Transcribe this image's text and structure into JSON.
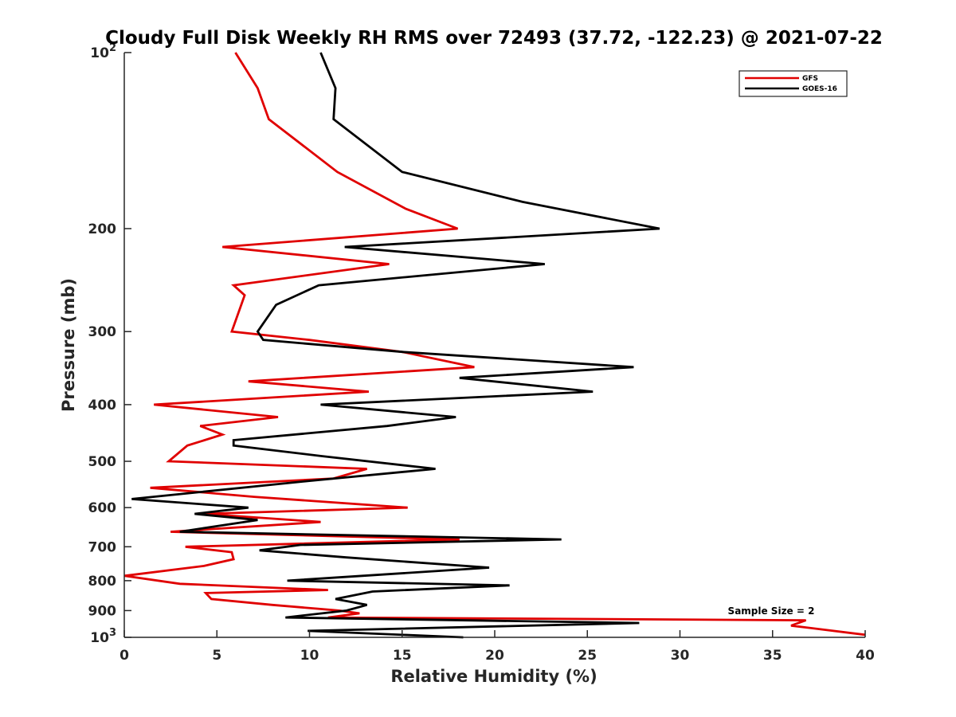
{
  "chart_data": {
    "type": "line",
    "title": "Cloudy Full Disk Weekly RH RMS over 72493 (37.72, -122.23) @ 2021-07-22",
    "xlabel": "Relative Humidity (%)",
    "ylabel": "Pressure (mb)",
    "xlim": [
      0,
      40
    ],
    "ylim": [
      100,
      1000
    ],
    "y_scale": "log",
    "y_reversed": true,
    "grid": false,
    "legend_position": "top-right",
    "x_ticks": [
      "0",
      "5",
      "10",
      "15",
      "20",
      "25",
      "30",
      "35",
      "40"
    ],
    "y_ticks": [
      {
        "value": 100,
        "base": "10",
        "exp": "2"
      },
      {
        "value": 200,
        "label": "200"
      },
      {
        "value": 300,
        "label": "300"
      },
      {
        "value": 400,
        "label": "400"
      },
      {
        "value": 500,
        "label": "500"
      },
      {
        "value": 600,
        "label": "600"
      },
      {
        "value": 700,
        "label": "700"
      },
      {
        "value": 800,
        "label": "800"
      },
      {
        "value": 900,
        "label": "900"
      },
      {
        "value": 1000,
        "base": "10",
        "exp": "3"
      }
    ],
    "annotation": "Sample Size = 2",
    "series": [
      {
        "name": "GFS",
        "color": "#e00000",
        "points": [
          [
            6.0,
            100
          ],
          [
            7.2,
            115
          ],
          [
            7.8,
            130
          ],
          [
            11.5,
            160
          ],
          [
            15.2,
            185
          ],
          [
            18.0,
            200
          ],
          [
            5.3,
            215
          ],
          [
            14.3,
            230
          ],
          [
            5.9,
            250
          ],
          [
            6.5,
            260
          ],
          [
            5.8,
            300
          ],
          [
            10.0,
            310
          ],
          [
            15.0,
            325
          ],
          [
            18.9,
            345
          ],
          [
            6.7,
            365
          ],
          [
            13.2,
            380
          ],
          [
            1.6,
            400
          ],
          [
            8.3,
            420
          ],
          [
            4.1,
            435
          ],
          [
            5.3,
            450
          ],
          [
            3.4,
            470
          ],
          [
            2.4,
            500
          ],
          [
            13.1,
            515
          ],
          [
            11.3,
            535
          ],
          [
            1.4,
            555
          ],
          [
            7.0,
            575
          ],
          [
            15.3,
            600
          ],
          [
            4.3,
            615
          ],
          [
            10.6,
            635
          ],
          [
            2.5,
            660
          ],
          [
            18.1,
            680
          ],
          [
            3.3,
            700
          ],
          [
            5.8,
            715
          ],
          [
            5.9,
            735
          ],
          [
            4.3,
            755
          ],
          [
            0.0,
            785
          ],
          [
            3.0,
            810
          ],
          [
            11.0,
            830
          ],
          [
            4.4,
            840
          ],
          [
            4.7,
            860
          ],
          [
            8.0,
            880
          ],
          [
            11.6,
            900
          ],
          [
            12.7,
            910
          ],
          [
            11.0,
            925
          ],
          [
            36.8,
            935
          ],
          [
            36.0,
            955
          ],
          [
            40.0,
            990
          ]
        ]
      },
      {
        "name": "GOES-16",
        "color": "#000000",
        "points": [
          [
            10.6,
            100
          ],
          [
            11.4,
            115
          ],
          [
            11.3,
            130
          ],
          [
            15.0,
            160
          ],
          [
            21.5,
            180
          ],
          [
            28.9,
            200
          ],
          [
            11.9,
            215
          ],
          [
            22.7,
            230
          ],
          [
            10.5,
            250
          ],
          [
            8.2,
            270
          ],
          [
            7.2,
            300
          ],
          [
            7.5,
            310
          ],
          [
            15.0,
            325
          ],
          [
            27.5,
            345
          ],
          [
            18.1,
            360
          ],
          [
            25.3,
            380
          ],
          [
            10.6,
            400
          ],
          [
            17.9,
            420
          ],
          [
            14.2,
            435
          ],
          [
            5.9,
            460
          ],
          [
            5.9,
            470
          ],
          [
            10.7,
            490
          ],
          [
            16.8,
            515
          ],
          [
            10.0,
            540
          ],
          [
            0.4,
            580
          ],
          [
            6.7,
            600
          ],
          [
            3.8,
            615
          ],
          [
            7.2,
            630
          ],
          [
            3.0,
            660
          ],
          [
            23.6,
            680
          ],
          [
            9.5,
            695
          ],
          [
            7.3,
            710
          ],
          [
            12.0,
            730
          ],
          [
            19.7,
            760
          ],
          [
            8.8,
            800
          ],
          [
            20.8,
            815
          ],
          [
            13.4,
            835
          ],
          [
            11.4,
            860
          ],
          [
            13.1,
            880
          ],
          [
            12.0,
            900
          ],
          [
            8.7,
            925
          ],
          [
            27.8,
            945
          ],
          [
            9.9,
            975
          ],
          [
            18.3,
            1000
          ]
        ]
      }
    ]
  }
}
